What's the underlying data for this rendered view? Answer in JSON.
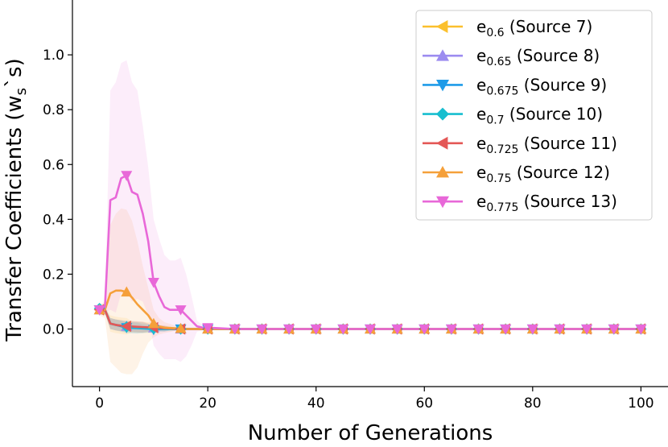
{
  "chart_data": {
    "type": "line",
    "title": "",
    "xlabel": "Number of Generations",
    "ylabel": "Transfer Coefficients (w",
    "ylabel_sub": "s",
    "ylabel_tail": "`s)",
    "xlim": [
      -5,
      105
    ],
    "ylim": [
      -0.21,
      1.2
    ],
    "xticks": [
      0,
      20,
      40,
      60,
      80,
      100
    ],
    "xtick_labels": [
      "0",
      "20",
      "40",
      "60",
      "80",
      "100"
    ],
    "yticks": [
      0.0,
      0.2,
      0.4,
      0.6,
      0.8,
      1.0
    ],
    "ytick_labels": [
      "0.0",
      "0.2",
      "0.4",
      "0.6",
      "0.8",
      "1.0"
    ],
    "grid": false,
    "legend_position": "top-right",
    "marker_every": 5,
    "x": [
      0,
      1,
      2,
      3,
      4,
      5,
      6,
      7,
      8,
      9,
      10,
      11,
      12,
      13,
      14,
      15,
      16,
      17,
      18,
      19,
      20,
      25,
      30,
      35,
      40,
      45,
      50,
      55,
      60,
      65,
      70,
      75,
      80,
      85,
      90,
      95,
      100
    ],
    "series": [
      {
        "name": "e",
        "sub": "0.6",
        "source": " (Source 7)",
        "color": "#fbc02d",
        "marker": "triangle-left",
        "values": [
          0.07,
          0.07,
          0.02,
          0.015,
          0.012,
          0.01,
          0.008,
          0.007,
          0.006,
          0.005,
          0.004,
          0.003,
          0.002,
          0.001,
          0,
          0,
          0,
          0,
          0,
          0,
          0,
          0,
          0,
          0,
          0,
          0,
          0,
          0,
          0,
          0,
          0,
          0,
          0,
          0,
          0,
          0,
          0
        ],
        "band": [
          0.01,
          0.01,
          0.03,
          0.03,
          0.03,
          0.03,
          0.02,
          0.02,
          0.02,
          0.02,
          0.02,
          0.01,
          0.01,
          0.01,
          0.005,
          0.005,
          0,
          0,
          0,
          0,
          0,
          0,
          0,
          0,
          0,
          0,
          0,
          0,
          0,
          0,
          0,
          0,
          0,
          0,
          0,
          0,
          0
        ]
      },
      {
        "name": "e",
        "sub": "0.65",
        "source": " (Source 8)",
        "color": "#9c8cf0",
        "marker": "triangle-up",
        "values": [
          0.07,
          0.07,
          0.02,
          0.015,
          0.012,
          0.01,
          0.009,
          0.008,
          0.006,
          0.005,
          0.004,
          0.003,
          0.002,
          0.001,
          0,
          0,
          0,
          0,
          0,
          0,
          0,
          0,
          0,
          0,
          0,
          0,
          0,
          0,
          0,
          0,
          0,
          0,
          0,
          0,
          0,
          0,
          0
        ],
        "band": [
          0.01,
          0.01,
          0.02,
          0.02,
          0.02,
          0.02,
          0.02,
          0.02,
          0.02,
          0.015,
          0.01,
          0.01,
          0.01,
          0.005,
          0.005,
          0.005,
          0,
          0,
          0,
          0,
          0,
          0,
          0,
          0,
          0,
          0,
          0,
          0,
          0,
          0,
          0,
          0,
          0,
          0,
          0,
          0,
          0
        ]
      },
      {
        "name": "e",
        "sub": "0.675",
        "source": " (Source 9)",
        "color": "#1e9be8",
        "marker": "triangle-down",
        "values": [
          0.07,
          0.07,
          0.02,
          0.015,
          0.01,
          0.005,
          0.004,
          0.003,
          0.002,
          0.001,
          -0.002,
          -0.001,
          0,
          0,
          0,
          0,
          0,
          0,
          0,
          0,
          0,
          0,
          0,
          0,
          0,
          0,
          0,
          0,
          0,
          0,
          0,
          0,
          0,
          0,
          0,
          0,
          0
        ],
        "band": [
          0.01,
          0.01,
          0.02,
          0.02,
          0.02,
          0.02,
          0.02,
          0.02,
          0.015,
          0.015,
          0.01,
          0.01,
          0.01,
          0.005,
          0.005,
          0.005,
          0,
          0,
          0,
          0,
          0,
          0,
          0,
          0,
          0,
          0,
          0,
          0,
          0,
          0,
          0,
          0,
          0,
          0,
          0,
          0,
          0
        ]
      },
      {
        "name": "e",
        "sub": "0.7",
        "source": " (Source 10)",
        "color": "#17becf",
        "marker": "diamond",
        "values": [
          0.075,
          0.07,
          0.02,
          0.015,
          0.012,
          0.008,
          0.006,
          0.005,
          0.004,
          0.003,
          0.002,
          0.001,
          0,
          0,
          0,
          0,
          0,
          0,
          0,
          0,
          0,
          0,
          0,
          0,
          0,
          0,
          0,
          0,
          0,
          0,
          0,
          0,
          0,
          0,
          0,
          0,
          0
        ],
        "band": [
          0.01,
          0.01,
          0.02,
          0.02,
          0.02,
          0.02,
          0.02,
          0.02,
          0.02,
          0.015,
          0.01,
          0.01,
          0.01,
          0.005,
          0.005,
          0.005,
          0,
          0,
          0,
          0,
          0,
          0,
          0,
          0,
          0,
          0,
          0,
          0,
          0,
          0,
          0,
          0,
          0,
          0,
          0,
          0,
          0
        ]
      },
      {
        "name": "e",
        "sub": "0.725",
        "source": " (Source 11)",
        "color": "#e45756",
        "marker": "triangle-left",
        "values": [
          0.07,
          0.07,
          0.02,
          0.015,
          0.012,
          0.01,
          0.009,
          0.008,
          0.007,
          0.006,
          0.005,
          0.004,
          0.003,
          0.002,
          0.001,
          0,
          0,
          0,
          0,
          0,
          0,
          0,
          0,
          0,
          0,
          0,
          0,
          0,
          0,
          0,
          0,
          0,
          0,
          0,
          0,
          0,
          0
        ],
        "band": [
          0.01,
          0.01,
          0.02,
          0.02,
          0.02,
          0.02,
          0.02,
          0.02,
          0.02,
          0.015,
          0.01,
          0.01,
          0.01,
          0.005,
          0.005,
          0.005,
          0,
          0,
          0,
          0,
          0,
          0,
          0,
          0,
          0,
          0,
          0,
          0,
          0,
          0,
          0,
          0,
          0,
          0,
          0,
          0,
          0
        ]
      },
      {
        "name": "e",
        "sub": "0.75",
        "source": " (Source 12)",
        "color": "#f5a03a",
        "marker": "triangle-up",
        "values": [
          0.07,
          0.07,
          0.13,
          0.14,
          0.14,
          0.135,
          0.115,
          0.09,
          0.07,
          0.05,
          0.02,
          0.01,
          0.005,
          0.004,
          0.003,
          0.002,
          0,
          0,
          0,
          0,
          0,
          0,
          0,
          0,
          0,
          0,
          0,
          0,
          0,
          0,
          0,
          0,
          0,
          0,
          0,
          0,
          0
        ],
        "band": [
          0.02,
          0.03,
          0.25,
          0.28,
          0.3,
          0.3,
          0.28,
          0.23,
          0.16,
          0.1,
          0.05,
          0.03,
          0.02,
          0.015,
          0.01,
          0.005,
          0,
          0,
          0,
          0,
          0,
          0,
          0,
          0,
          0,
          0,
          0,
          0,
          0,
          0,
          0,
          0,
          0,
          0,
          0,
          0,
          0
        ]
      },
      {
        "name": "e",
        "sub": "0.775",
        "source": " (Source 13)",
        "color": "#e868d8",
        "marker": "triangle-down",
        "values": [
          0.07,
          0.08,
          0.47,
          0.48,
          0.55,
          0.56,
          0.5,
          0.49,
          0.42,
          0.32,
          0.17,
          0.12,
          0.08,
          0.07,
          0.07,
          0.07,
          0.05,
          0.03,
          0.01,
          0.005,
          0.005,
          0,
          0,
          0,
          0,
          0,
          0,
          0,
          0,
          0,
          0,
          0,
          0,
          0,
          0,
          0,
          0
        ],
        "band": [
          0.01,
          0.02,
          0.4,
          0.42,
          0.42,
          0.42,
          0.4,
          0.38,
          0.32,
          0.27,
          0.23,
          0.21,
          0.19,
          0.18,
          0.18,
          0.19,
          0.15,
          0.09,
          0.02,
          0.01,
          0.005,
          0,
          0,
          0,
          0,
          0,
          0,
          0,
          0,
          0,
          0,
          0,
          0,
          0,
          0,
          0,
          0
        ]
      }
    ]
  }
}
